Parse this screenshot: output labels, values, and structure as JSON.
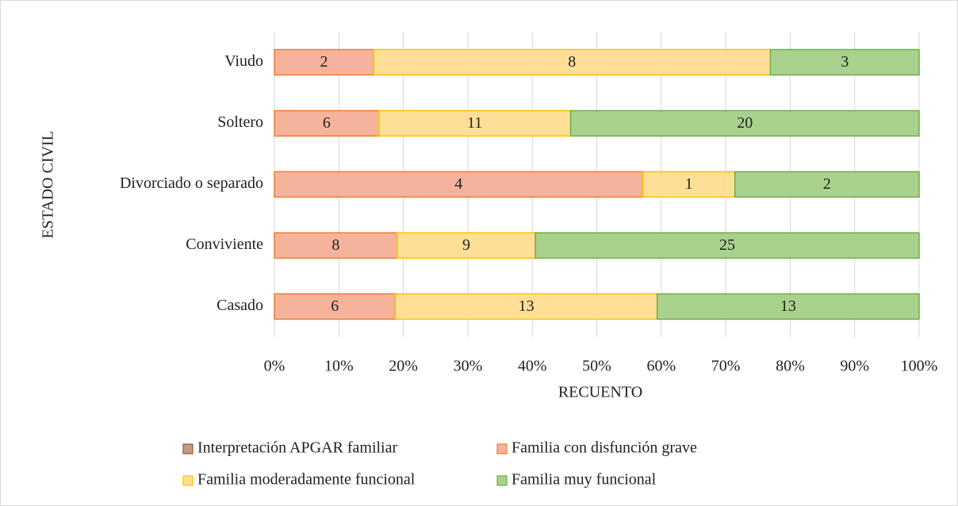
{
  "chart_data": {
    "type": "bar",
    "orientation": "horizontal",
    "stacking": "percent",
    "x_label": "RECUENTO",
    "y_label": "ESTADO CIVIL",
    "categories": [
      "Casado",
      "Conviviente",
      "Divorciado o separado",
      "Soltero",
      "Viudo"
    ],
    "series": [
      {
        "name": "Interpretación APGAR familiar",
        "color": "#c49a85",
        "edge": "#8b5a3c",
        "values": [
          null,
          null,
          null,
          null,
          null
        ]
      },
      {
        "name": "Familia con disfunción grave",
        "color": "#f5b39c",
        "edge": "#ed7d31",
        "values": [
          6,
          8,
          4,
          6,
          2
        ]
      },
      {
        "name": "Familia moderadamente funcional",
        "color": "#ffdf96",
        "edge": "#ffc000",
        "values": [
          13,
          9,
          1,
          11,
          8
        ]
      },
      {
        "name": "Familia muy funcional",
        "color": "#a9d18e",
        "edge": "#70ad47",
        "values": [
          13,
          25,
          2,
          20,
          3
        ]
      }
    ],
    "xlim": [
      0,
      100
    ],
    "xticks": [
      {
        "value": 0,
        "label": "0%"
      },
      {
        "value": 10,
        "label": "10%"
      },
      {
        "value": 20,
        "label": "20%"
      },
      {
        "value": 30,
        "label": "30%"
      },
      {
        "value": 40,
        "label": "40%"
      },
      {
        "value": 50,
        "label": "50%"
      },
      {
        "value": 60,
        "label": "60%"
      },
      {
        "value": 70,
        "label": "70%"
      },
      {
        "value": 80,
        "label": "80%"
      },
      {
        "value": 90,
        "label": "90%"
      },
      {
        "value": 100,
        "label": "100%"
      }
    ],
    "grid": true,
    "legend": "bottom"
  }
}
